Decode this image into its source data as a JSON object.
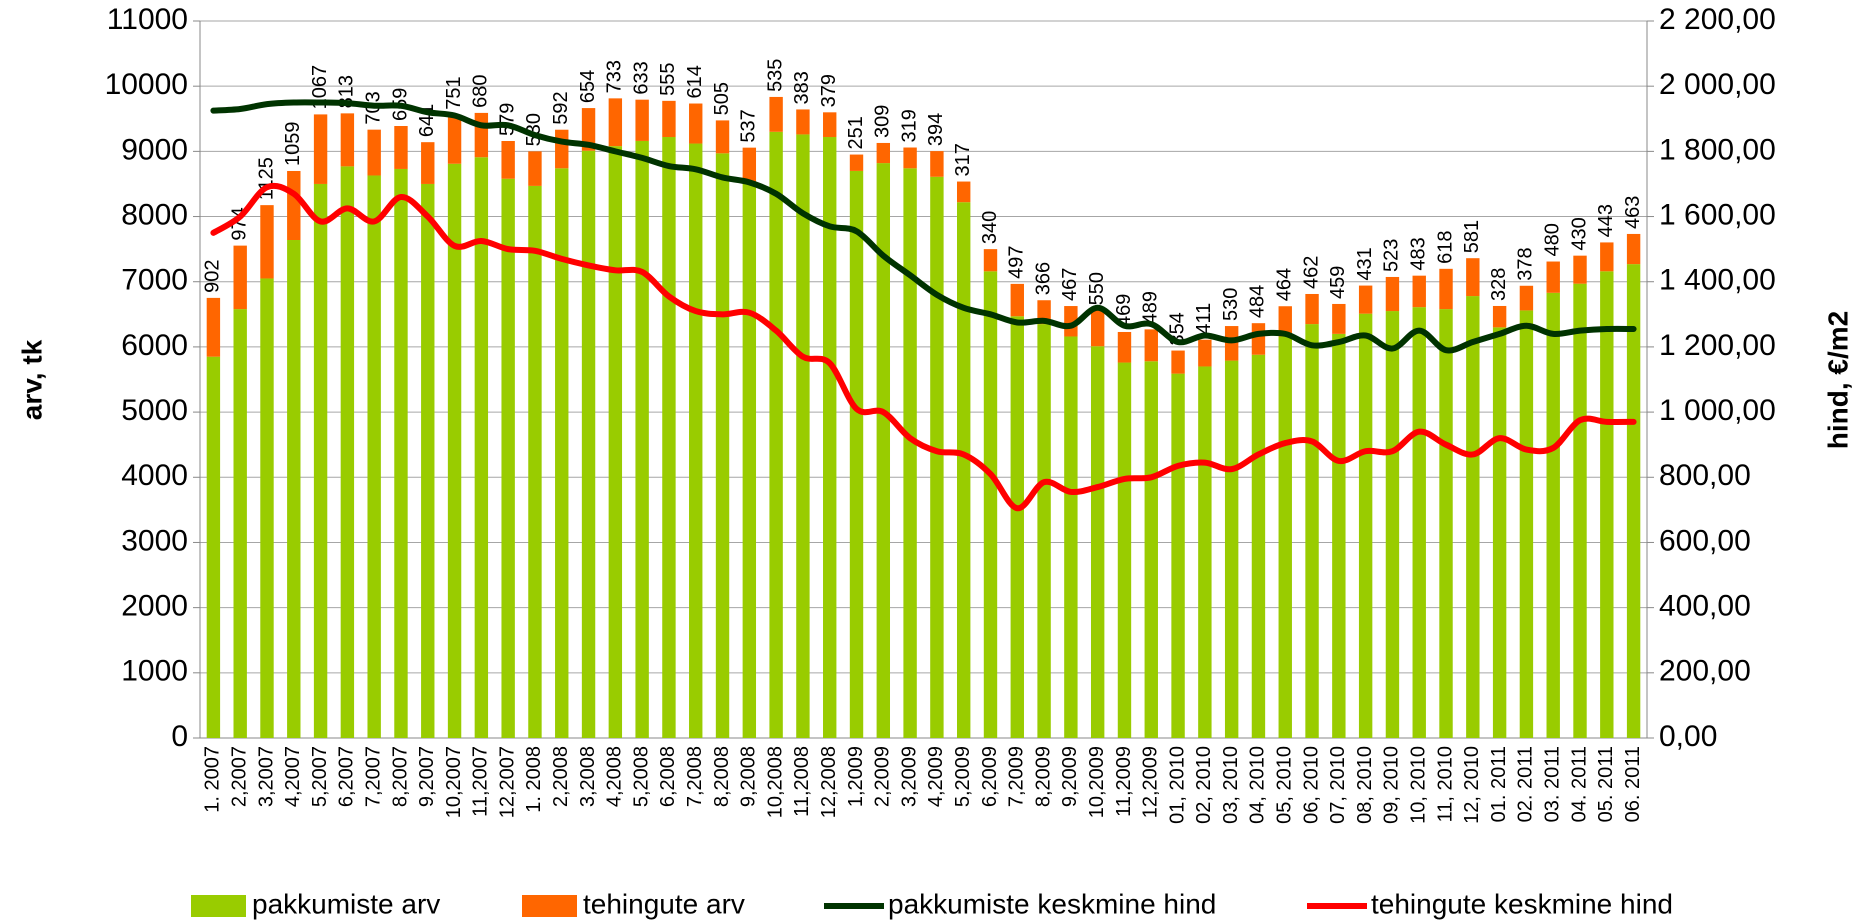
{
  "chart_data": {
    "type": "bar",
    "categories": [
      "1. 2007",
      "2,2007",
      "3,2007",
      "4,2007",
      "5,2007",
      "6,2007",
      "7,2007",
      "8,2007",
      "9,2007",
      "10,2007",
      "11,2007",
      "12,2007",
      "1. 2008",
      "2,2008",
      "3,2008",
      "4,2008",
      "5,2008",
      "6,2008",
      "7,2008",
      "8,2008",
      "9,2008",
      "10,2008",
      "11,2008",
      "12,2008",
      "1,2009",
      "2,2009",
      "3,2009",
      "4,2009",
      "5,2009",
      "6,2009",
      "7,2009",
      "8,2009",
      "9,2009",
      "10,2009",
      "11,2009",
      "12,2009",
      "01, 2010",
      "02, 2010",
      "03, 2010",
      "04, 2010",
      "05, 2010",
      "06, 2010",
      "07, 2010",
      "08, 2010",
      "09, 2010",
      "10, 2010",
      "11, 2010",
      "12, 2010",
      "01. 2011",
      "02. 2011",
      "03. 2011",
      "04. 2011",
      "05. 2011",
      "06. 2011"
    ],
    "series": [
      {
        "name": "pakkumiste arv",
        "color": "#99cc00",
        "stack": true,
        "values": [
          5850,
          6580,
          7050,
          7640,
          8500,
          8770,
          8630,
          8730,
          8500,
          8810,
          8910,
          8580,
          8470,
          8740,
          9010,
          9080,
          9160,
          9220,
          9120,
          8970,
          8520,
          9300,
          9260,
          9220,
          8700,
          8820,
          8740,
          8610,
          8220,
          7160,
          6470,
          6350,
          6160,
          6010,
          5760,
          5780,
          5590,
          5700,
          5790,
          5880,
          6160,
          6350,
          6200,
          6510,
          6550,
          6610,
          6580,
          6780,
          6300,
          6560,
          6830,
          6970,
          7160,
          7270
        ]
      },
      {
        "name": "tehingute arv",
        "color": "#ff6600",
        "stack": true,
        "data_labels": true,
        "values": [
          902,
          974,
          1125,
          1059,
          1067,
          813,
          703,
          659,
          641,
          751,
          680,
          579,
          530,
          592,
          654,
          733,
          633,
          555,
          614,
          505,
          537,
          535,
          383,
          379,
          251,
          309,
          319,
          394,
          317,
          340,
          497,
          366,
          467,
          550,
          469,
          489,
          354,
          411,
          530,
          484,
          464,
          462,
          459,
          431,
          523,
          483,
          618,
          581,
          328,
          378,
          480,
          430,
          443,
          463
        ]
      },
      {
        "name": "pakkumiste keskmine hind",
        "color": "#003300",
        "type": "line",
        "axis": "y2",
        "values": [
          1925,
          1930,
          1945,
          1950,
          1950,
          1948,
          1940,
          1940,
          1920,
          1910,
          1880,
          1880,
          1850,
          1830,
          1820,
          1800,
          1780,
          1755,
          1745,
          1720,
          1705,
          1670,
          1610,
          1570,
          1555,
          1480,
          1420,
          1360,
          1320,
          1300,
          1275,
          1280,
          1265,
          1320,
          1265,
          1270,
          1215,
          1235,
          1220,
          1240,
          1240,
          1205,
          1215,
          1235,
          1195,
          1250,
          1190,
          1215,
          1240,
          1265,
          1240,
          1250,
          1255,
          1255
        ]
      },
      {
        "name": "tehingute keskmine hind",
        "color": "#ff0000",
        "type": "line",
        "axis": "y2",
        "values": [
          1550,
          1600,
          1690,
          1670,
          1585,
          1625,
          1585,
          1660,
          1600,
          1510,
          1525,
          1500,
          1495,
          1470,
          1450,
          1435,
          1430,
          1355,
          1310,
          1300,
          1305,
          1250,
          1170,
          1150,
          1010,
          1000,
          920,
          880,
          870,
          810,
          705,
          785,
          755,
          770,
          795,
          800,
          835,
          845,
          825,
          870,
          905,
          910,
          850,
          880,
          880,
          940,
          900,
          870,
          920,
          885,
          890,
          975,
          970,
          970
        ]
      }
    ],
    "ylabel": "arv, tk",
    "y2label": "hind, €/m2",
    "ylim": [
      0,
      11000
    ],
    "yticks": [
      0,
      1000,
      2000,
      3000,
      4000,
      5000,
      6000,
      7000,
      8000,
      9000,
      10000,
      11000
    ],
    "y2lim": [
      0,
      2200
    ],
    "y2ticks": [
      {
        "value": 0,
        "label": "0,00"
      },
      {
        "value": 200,
        "label": "200,00"
      },
      {
        "value": 400,
        "label": "400,00"
      },
      {
        "value": 600,
        "label": "600,00"
      },
      {
        "value": 800,
        "label": "800,00"
      },
      {
        "value": 1000,
        "label": "1 000,00"
      },
      {
        "value": 1200,
        "label": "1 200,00"
      },
      {
        "value": 1400,
        "label": "1 400,00"
      },
      {
        "value": 1600,
        "label": "1 600,00"
      },
      {
        "value": 1800,
        "label": "1 800,00"
      },
      {
        "value": 2000,
        "label": "2 000,00"
      },
      {
        "value": 2200,
        "label": "2 200,00"
      }
    ],
    "grid": true,
    "legend": "bottom"
  }
}
